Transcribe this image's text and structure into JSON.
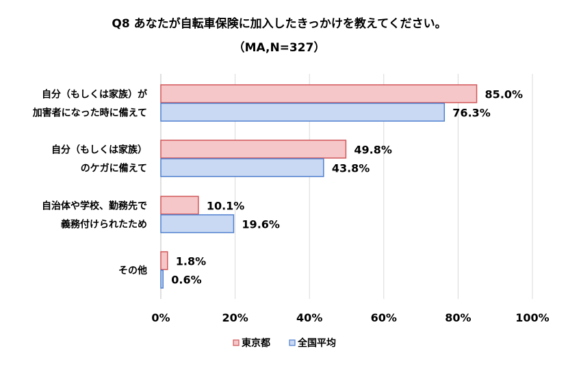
{
  "chart_data": {
    "type": "bar",
    "orientation": "horizontal",
    "title": [
      "Q8 あなたが自転車保険に加入したきっかけを教えてください。",
      "（MA,N=327）"
    ],
    "categories": [
      [
        "自分（もしくは家族）が",
        "加害者になった時に備えて"
      ],
      [
        "自分（もしくは家族）",
        "のケガに備えて"
      ],
      [
        "自治体や学校、勤務先で",
        "義務付けられたため"
      ],
      [
        "その他"
      ]
    ],
    "series": [
      {
        "name": "東京都",
        "values": [
          85.0,
          49.8,
          10.1,
          1.8
        ],
        "labels": [
          "85.0%",
          "49.8%",
          "10.1%",
          "1.8%"
        ],
        "fill": "#f6c7c8",
        "stroke": "#d05558"
      },
      {
        "name": "全国平均",
        "values": [
          76.3,
          43.8,
          19.6,
          0.6
        ],
        "labels": [
          "76.3%",
          "43.8%",
          "19.6%",
          "0.6%"
        ],
        "fill": "#c9d9f3",
        "stroke": "#4f7fce"
      }
    ],
    "xlim": [
      0,
      100
    ],
    "xticks": [
      0,
      20,
      40,
      60,
      80,
      100
    ],
    "xtick_labels": [
      "0%",
      "20%",
      "40%",
      "60%",
      "80%",
      "100%"
    ],
    "grid": true,
    "legend_position": "bottom"
  }
}
